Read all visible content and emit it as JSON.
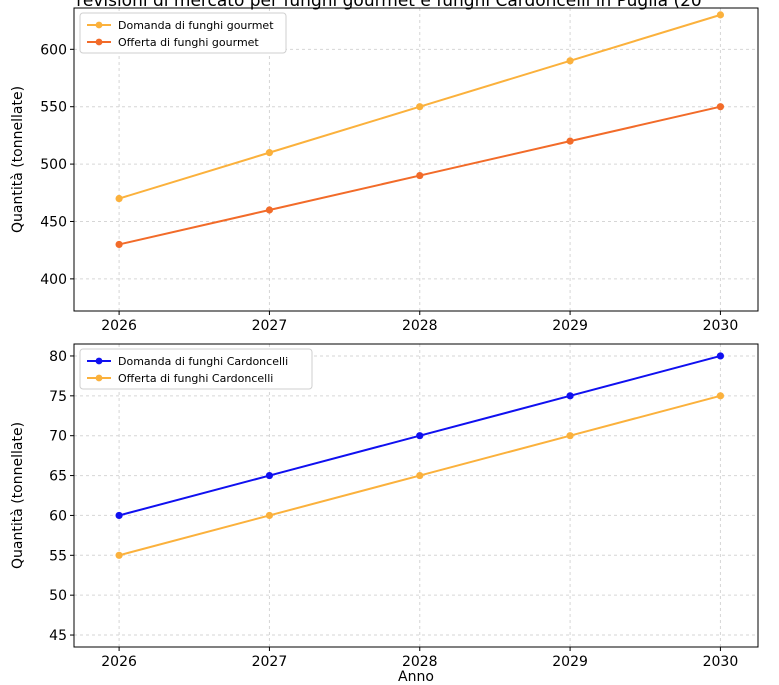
{
  "figure": {
    "title": "revisioni di mercato per funghi gourmet e funghi Cardoncelli in Puglia (20"
  },
  "chart_data": [
    {
      "type": "line",
      "x": [
        2026,
        2027,
        2028,
        2029,
        2030
      ],
      "series": [
        {
          "name": "Domanda di funghi gourmet",
          "values": [
            470,
            510,
            550,
            590,
            630
          ],
          "color": "#FBB13C"
        },
        {
          "name": "Offerta di funghi gourmet",
          "values": [
            430,
            460,
            490,
            520,
            550
          ],
          "color": "#F26B29"
        }
      ],
      "xlabel": "",
      "ylabel": "Quantità (tonnellate)",
      "xlim": [
        2025.7,
        2030.25
      ],
      "ylim": [
        372,
        636
      ],
      "yticks": [
        400,
        450,
        500,
        550,
        600
      ],
      "xticks": [
        2026,
        2027,
        2028,
        2029,
        2030
      ],
      "grid": true,
      "legend": "top-left"
    },
    {
      "type": "line",
      "x": [
        2026,
        2027,
        2028,
        2029,
        2030
      ],
      "series": [
        {
          "name": "Domanda di funghi Cardoncelli",
          "values": [
            60,
            65,
            70,
            75,
            80
          ],
          "color": "#1010F0"
        },
        {
          "name": "Offerta di funghi Cardoncelli",
          "values": [
            55,
            60,
            65,
            70,
            75
          ],
          "color": "#FBB13C"
        }
      ],
      "xlabel": "Anno",
      "ylabel": "Quantità (tonnellate)",
      "xlim": [
        2025.7,
        2030.25
      ],
      "ylim": [
        43.5,
        81.5
      ],
      "yticks": [
        45,
        50,
        55,
        60,
        65,
        70,
        75,
        80
      ],
      "xticks": [
        2026,
        2027,
        2028,
        2029,
        2030
      ],
      "grid": true,
      "legend": "top-left"
    }
  ]
}
